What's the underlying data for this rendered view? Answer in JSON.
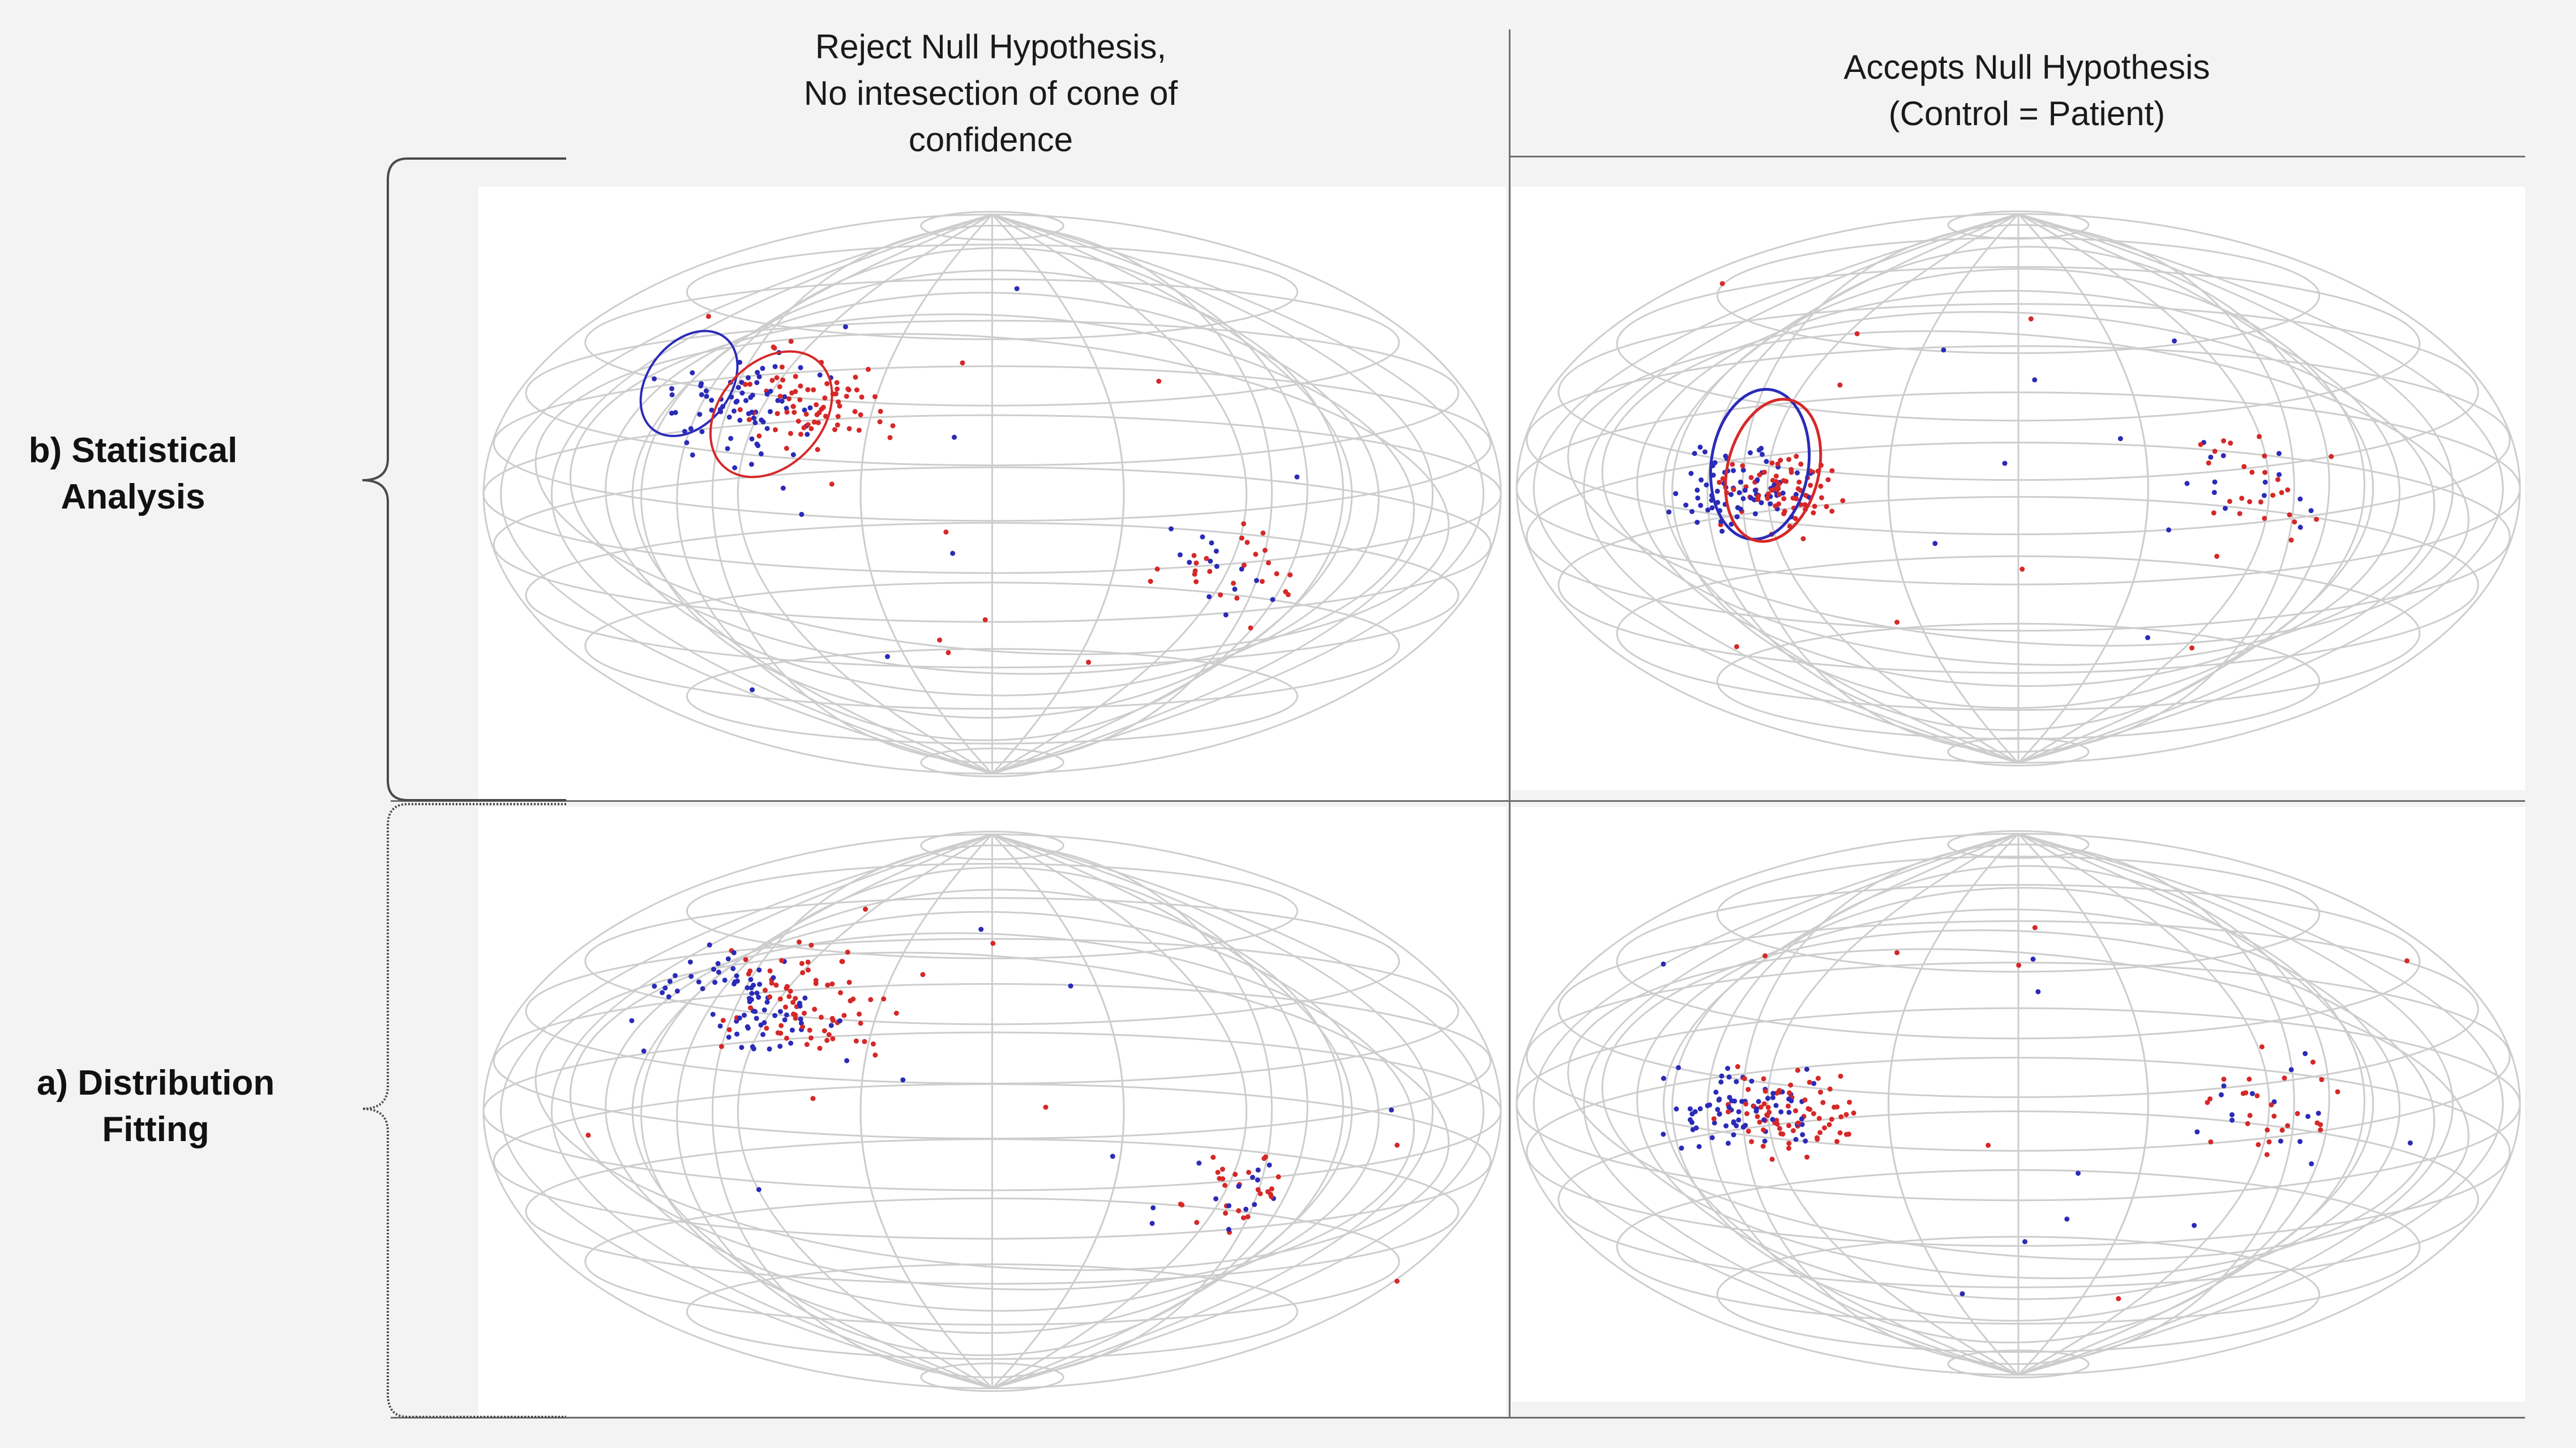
{
  "columns": [
    {
      "title_lines": [
        "Reject Null Hypothesis,",
        "No intesection of cone of",
        "confidence"
      ]
    },
    {
      "title_lines": [
        "Accepts Null Hypothesis",
        "(Control = Patient)"
      ]
    }
  ],
  "rows": [
    {
      "label_lines": [
        "b) Statistical",
        "Analysis"
      ]
    },
    {
      "label_lines": [
        "a) Distribution",
        "Fitting"
      ]
    }
  ],
  "colors": {
    "control": "#2b2bb8",
    "patient": "#d62828",
    "grid": "#cdcdcd"
  }
}
